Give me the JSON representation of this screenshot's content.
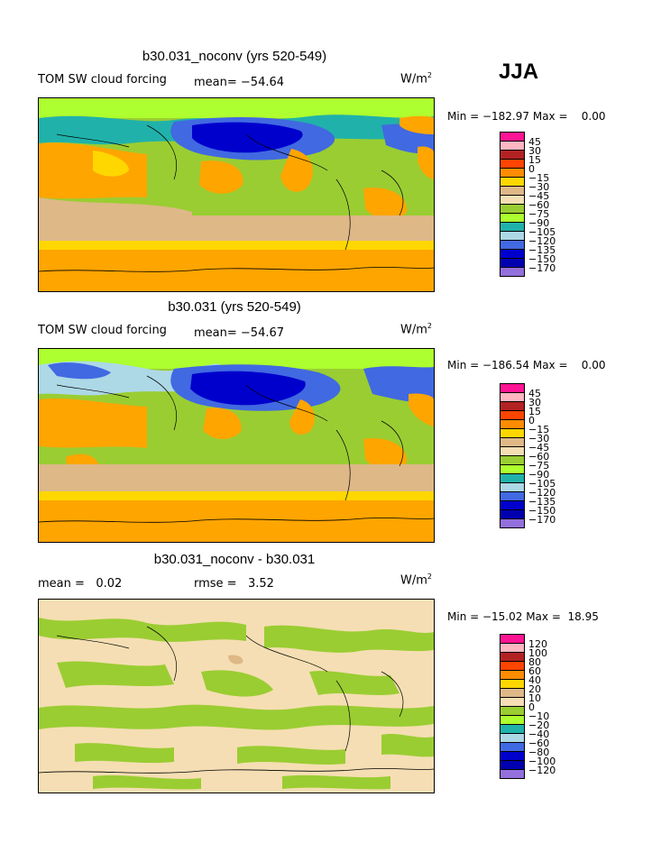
{
  "season": "JJA",
  "panels": [
    {
      "title": "b30.031_noconv (yrs 520-549)",
      "field": "TOM SW cloud forcing",
      "mean_label": "mean=",
      "mean": "−54.64",
      "rmse_label": "",
      "rmse": "",
      "units": "W/m",
      "units_sup": "2",
      "minmax": "Min = −182.97 Max =    0.00",
      "legend": [
        "45",
        "30",
        "15",
        "0",
        "−15",
        "−30",
        "−45",
        "−60",
        "−75",
        "−90",
        "−105",
        "−120",
        "−135",
        "−150",
        "−170"
      ]
    },
    {
      "title": "b30.031 (yrs 520-549)",
      "field": "TOM SW cloud forcing",
      "mean_label": "mean=",
      "mean": "−54.67",
      "rmse_label": "",
      "rmse": "",
      "units": "W/m",
      "units_sup": "2",
      "minmax": "Min = −186.54 Max =    0.00",
      "legend": [
        "45",
        "30",
        "15",
        "0",
        "−15",
        "−30",
        "−45",
        "−60",
        "−75",
        "−90",
        "−105",
        "−120",
        "−135",
        "−150",
        "−170"
      ]
    },
    {
      "title": "b30.031_noconv - b30.031",
      "field": "",
      "mean_label": "mean =",
      "mean": "0.02",
      "rmse_label": "rmse =",
      "rmse": "3.52",
      "units": "W/m",
      "units_sup": "2",
      "minmax": "Min = −15.02 Max =  18.95",
      "legend": [
        "120",
        "100",
        "80",
        "60",
        "40",
        "20",
        "10",
        "0",
        "−10",
        "−20",
        "−40",
        "−60",
        "−80",
        "−100",
        "−120"
      ]
    }
  ],
  "colorbar_colors": [
    "#ff1493",
    "#ffb6c1",
    "#b22222",
    "#ff4500",
    "#ff8c00",
    "#ffd700",
    "#deb887",
    "#f5deb3",
    "#9acd32",
    "#adff2f",
    "#20b2aa",
    "#add8e6",
    "#4169e1",
    "#0000cd",
    "#0000b0",
    "#9370db"
  ],
  "map_colors": {
    "orange": "#ffa500",
    "yellow": "#ffd700",
    "tan": "#deb887",
    "wheat": "#f5deb3",
    "green": "#9acd32",
    "lightgreen": "#adff2f",
    "teal": "#20b2aa",
    "lightblue": "#add8e6",
    "blue": "#4169e1",
    "darkblue": "#0000cd"
  }
}
